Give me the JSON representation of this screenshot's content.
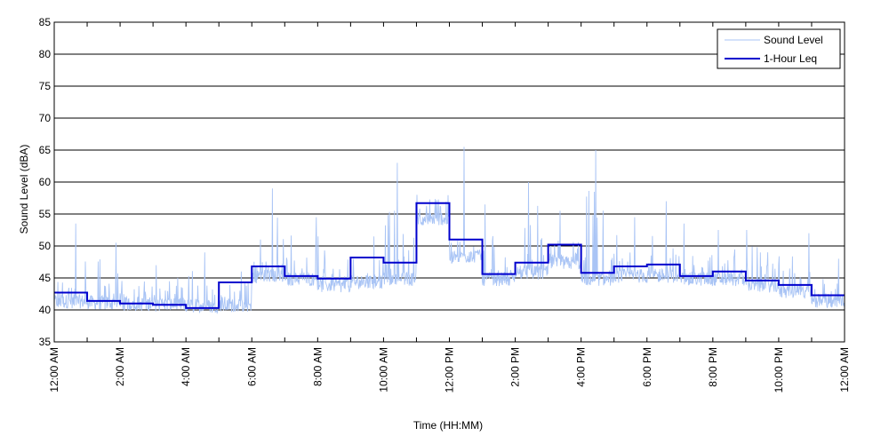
{
  "chart_data": {
    "type": "line",
    "xlabel": "Time (HH:MM)",
    "ylabel": "Sound Level (dBA)",
    "ylim": [
      35,
      85
    ],
    "xlim": [
      0,
      24
    ],
    "y_ticks": [
      35,
      40,
      45,
      50,
      55,
      60,
      65,
      70,
      75,
      80,
      85
    ],
    "x_tick_labels": [
      "12:00 AM",
      "2:00 AM",
      "4:00 AM",
      "6:00 AM",
      "8:00 AM",
      "10:00 AM",
      "12:00 PM",
      "2:00 PM",
      "4:00 PM",
      "6:00 PM",
      "8:00 PM",
      "10:00 PM",
      "12:00 AM"
    ],
    "x_tick_hours": [
      0,
      2,
      4,
      6,
      8,
      10,
      12,
      14,
      16,
      18,
      20,
      22,
      24
    ],
    "grid": "horizontal",
    "legend_position": "top-right",
    "series": [
      {
        "name": "Sound Level",
        "color": "#a9c4f5",
        "hourly_base": [
          41.0,
          40.8,
          40.6,
          40.5,
          40.3,
          40.4,
          45.0,
          44.5,
          43.5,
          44.0,
          44.5,
          54.0,
          48.0,
          44.5,
          45.5,
          47.0,
          44.5,
          45.0,
          45.0,
          44.5,
          44.5,
          43.5,
          42.5,
          41.0
        ],
        "hourly_peak": [
          53.5,
          50.5,
          43.0,
          47.0,
          49.0,
          46.0,
          59.0,
          54.5,
          51.5,
          51.5,
          63.0,
          58.0,
          65.5,
          56.5,
          60.0,
          55.5,
          65.0,
          54.5,
          57.0,
          53.5,
          52.5,
          52.5,
          52.0,
          48.0
        ]
      },
      {
        "name": "1-Hour Leq",
        "color": "#0000cd",
        "values": [
          42.7,
          41.4,
          41.0,
          40.8,
          40.3,
          44.3,
          46.8,
          45.3,
          44.9,
          48.2,
          47.4,
          56.7,
          51.0,
          45.6,
          47.4,
          50.2,
          45.8,
          46.8,
          47.1,
          45.3,
          46.0,
          44.6,
          43.9,
          42.3
        ]
      }
    ]
  }
}
